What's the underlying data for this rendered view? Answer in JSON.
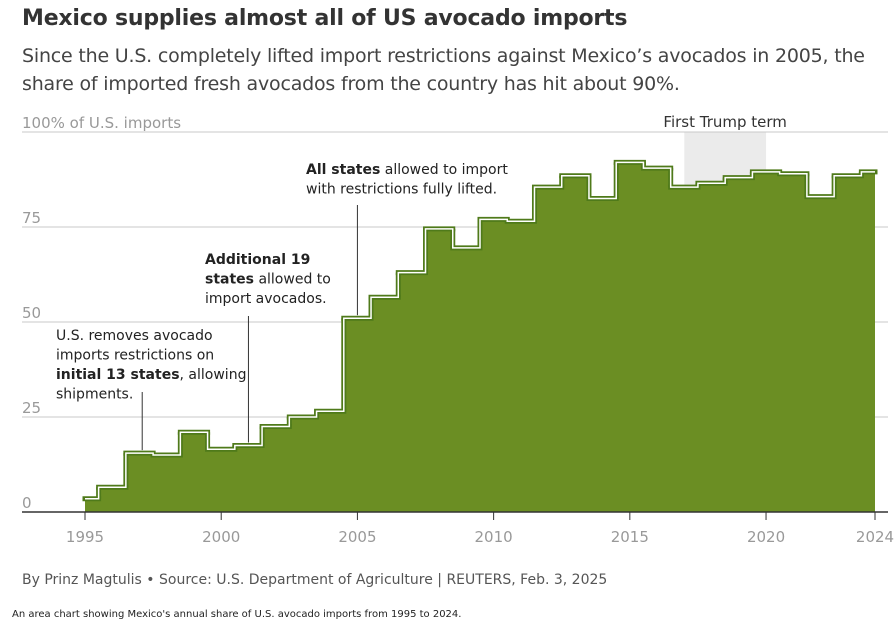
{
  "header": {
    "title": "Mexico supplies almost all of US avocado imports",
    "subtitle": "Since the U.S. completely lifted import restrictions against Mexico’s avocados in 2005, the share of imported fresh avocados from the country has hit about 90%."
  },
  "footer": {
    "byline": "By Prinz Magtulis • Source: U.S. Department of Agriculture | REUTERS, Feb. 3, 2025",
    "caption": "An area chart showing Mexico's annual share of U.S. avocado imports from 1995 to 2024."
  },
  "colors": {
    "area_fill": "#6b8e23",
    "step_line": "#4f7a1a",
    "highlight_band": "#ebebeb",
    "gridline": "#c8c8c8",
    "axis_text": "#999999"
  },
  "chart_data": {
    "type": "area",
    "step": true,
    "title": "Mexico supplies almost all of US avocado imports",
    "ylabel": "100% of U.S. imports",
    "xlim": [
      1995,
      2024
    ],
    "ylim": [
      0,
      100
    ],
    "y_ticks": [
      {
        "value": 0,
        "label": "0"
      },
      {
        "value": 25,
        "label": "25"
      },
      {
        "value": 50,
        "label": "50"
      },
      {
        "value": 75,
        "label": "75"
      },
      {
        "value": 100,
        "label": "100% of U.S. imports"
      }
    ],
    "x_ticks": [
      {
        "value": 1995,
        "label": "1995"
      },
      {
        "value": 2000,
        "label": "2000"
      },
      {
        "value": 2005,
        "label": "2005"
      },
      {
        "value": 2010,
        "label": "2010"
      },
      {
        "value": 2015,
        "label": "2015"
      },
      {
        "value": 2020,
        "label": "2020"
      },
      {
        "value": 2024,
        "label": "2024"
      }
    ],
    "grid": true,
    "series": [
      {
        "values": [
          {
            "year": 1995,
            "value": 3.5
          },
          {
            "year": 1996,
            "value": 6.5
          },
          {
            "year": 1997,
            "value": 15.5
          },
          {
            "year": 1998,
            "value": 15
          },
          {
            "year": 1999,
            "value": 21
          },
          {
            "year": 2000,
            "value": 16.5
          },
          {
            "year": 2001,
            "value": 17.5
          },
          {
            "year": 2002,
            "value": 22.5
          },
          {
            "year": 2003,
            "value": 25
          },
          {
            "year": 2004,
            "value": 26.5
          },
          {
            "year": 2005,
            "value": 51
          },
          {
            "year": 2006,
            "value": 56.5
          },
          {
            "year": 2007,
            "value": 63
          },
          {
            "year": 2008,
            "value": 74.5
          },
          {
            "year": 2009,
            "value": 69.5
          },
          {
            "year": 2010,
            "value": 77
          },
          {
            "year": 2011,
            "value": 76.5
          },
          {
            "year": 2012,
            "value": 85.5
          },
          {
            "year": 2013,
            "value": 88.5
          },
          {
            "year": 2014,
            "value": 82.5
          },
          {
            "year": 2015,
            "value": 92
          },
          {
            "year": 2016,
            "value": 90.5
          },
          {
            "year": 2017,
            "value": 85.5
          },
          {
            "year": 2018,
            "value": 86.5
          },
          {
            "year": 2019,
            "value": 88
          },
          {
            "year": 2020,
            "value": 89.5
          },
          {
            "year": 2021,
            "value": 89
          },
          {
            "year": 2022,
            "value": 83
          },
          {
            "year": 2023,
            "value": 88.5
          },
          {
            "year": 2024,
            "value": 89.5
          }
        ]
      }
    ],
    "highlight_band": {
      "from": 2017,
      "to": 2020,
      "label": "First Trump term"
    },
    "annotations": [
      {
        "year": 1997.1,
        "value": 15.5,
        "lines": [
          [
            {
              "text": "U.S. removes avocado",
              "bold": false
            }
          ],
          [
            {
              "text": "imports restrictions on",
              "bold": false
            }
          ],
          [
            {
              "text": "initial 13 states",
              "bold": true
            },
            {
              "text": ", allowing",
              "bold": false
            }
          ],
          [
            {
              "text": "shipments.",
              "bold": false
            }
          ]
        ]
      },
      {
        "year": 2001,
        "value": 17.5,
        "lines": [
          [
            {
              "text": "Additional 19",
              "bold": true
            }
          ],
          [
            {
              "text": "states",
              "bold": true
            },
            {
              "text": " allowed to",
              "bold": false
            }
          ],
          [
            {
              "text": "import avocados.",
              "bold": false
            }
          ]
        ]
      },
      {
        "year": 2005,
        "value": 51,
        "lines": [
          [
            {
              "text": "All states",
              "bold": true
            },
            {
              "text": " allowed to import",
              "bold": false
            }
          ],
          [
            {
              "text": "with restrictions fully lifted.",
              "bold": false
            }
          ]
        ]
      }
    ]
  }
}
